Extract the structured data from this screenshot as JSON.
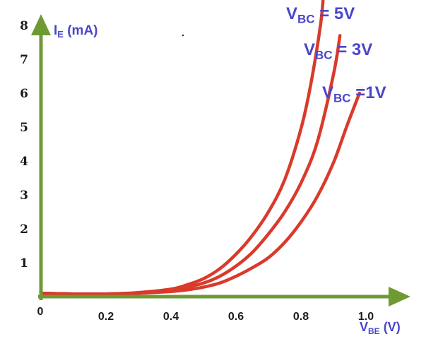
{
  "chart_data": {
    "type": "line",
    "title": "",
    "ylabel": {
      "main": "I",
      "sub": "E",
      "rest": " (mA)"
    },
    "xlabel": {
      "main": "V",
      "sub": "BE",
      "rest": " (V)"
    },
    "origin_label": "0",
    "xticks": [
      {
        "value": 0.2,
        "label": "0.2"
      },
      {
        "value": 0.4,
        "label": "0.4"
      },
      {
        "value": 0.6,
        "label": "0.6"
      },
      {
        "value": 0.8,
        "label": "0.8"
      },
      {
        "value": 1.0,
        "label": "1.0"
      }
    ],
    "yticks": [
      {
        "value": 1,
        "label": "1"
      },
      {
        "value": 2,
        "label": "2"
      },
      {
        "value": 3,
        "label": "3"
      },
      {
        "value": 4,
        "label": "4"
      },
      {
        "value": 5,
        "label": "5"
      },
      {
        "value": 6,
        "label": "6"
      },
      {
        "value": 7,
        "label": "7"
      },
      {
        "value": 8,
        "label": "8"
      }
    ],
    "xlim": [
      0,
      1.05
    ],
    "ylim": [
      0,
      8.8
    ],
    "grid": false,
    "axis_color": "#6e9a34",
    "curve_color": "#d93a2b",
    "label_color": "#4a47c9",
    "series": [
      {
        "name": {
          "main": "V",
          "sub": "BC",
          "rest": " = 5V"
        },
        "x": [
          0.0,
          0.1,
          0.2,
          0.3,
          0.4,
          0.45,
          0.5,
          0.55,
          0.6,
          0.65,
          0.7,
          0.75,
          0.8,
          0.83,
          0.86,
          0.87
        ],
        "y": [
          0.1,
          0.08,
          0.08,
          0.12,
          0.22,
          0.35,
          0.53,
          0.82,
          1.25,
          1.8,
          2.5,
          3.45,
          4.95,
          6.25,
          8.0,
          9.0
        ]
      },
      {
        "name": {
          "main": "V",
          "sub": "BC",
          "rest": " = 3V"
        },
        "x": [
          0.0,
          0.1,
          0.2,
          0.3,
          0.4,
          0.45,
          0.5,
          0.55,
          0.6,
          0.65,
          0.7,
          0.75,
          0.8,
          0.85,
          0.9,
          0.92
        ],
        "y": [
          0.1,
          0.08,
          0.08,
          0.11,
          0.18,
          0.28,
          0.4,
          0.6,
          0.9,
          1.3,
          1.85,
          2.5,
          3.35,
          4.55,
          6.55,
          7.7
        ]
      },
      {
        "name": {
          "main": "V",
          "sub": "BC",
          "rest": " =1V"
        },
        "x": [
          0.0,
          0.1,
          0.2,
          0.3,
          0.4,
          0.45,
          0.5,
          0.55,
          0.6,
          0.65,
          0.7,
          0.75,
          0.8,
          0.85,
          0.9,
          0.94,
          0.98
        ],
        "y": [
          0.1,
          0.08,
          0.08,
          0.1,
          0.15,
          0.2,
          0.28,
          0.4,
          0.6,
          0.85,
          1.15,
          1.6,
          2.2,
          2.95,
          3.95,
          5.0,
          6.0
        ]
      }
    ]
  }
}
